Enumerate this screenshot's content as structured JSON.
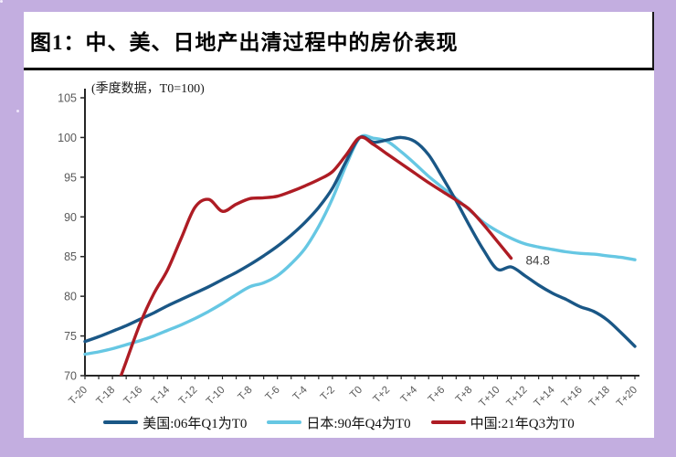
{
  "figure": {
    "title": "图1：中、美、日地产出清过程中的房价表现",
    "subtitle": "(季度数据，T0=100)"
  },
  "chart_data": {
    "type": "line",
    "title": "图1：中、美、日地产出清过程中的房价表现",
    "subtitle": "(季度数据，T0=100)",
    "x_categories": [
      "T-20",
      "T-19",
      "T-18",
      "T-17",
      "T-16",
      "T-15",
      "T-14",
      "T-13",
      "T-12",
      "T-11",
      "T-10",
      "T-9",
      "T-8",
      "T-7",
      "T-6",
      "T-5",
      "T-4",
      "T-3",
      "T-2",
      "T-1",
      "T0",
      "T+1",
      "T+2",
      "T+3",
      "T+4",
      "T+5",
      "T+6",
      "T+7",
      "T+8",
      "T+9",
      "T+10",
      "T+11",
      "T+12",
      "T+13",
      "T+14",
      "T+15",
      "T+16",
      "T+17",
      "T+18",
      "T+19",
      "T+20"
    ],
    "x_tick_label_every": 2,
    "ylim": [
      70,
      105
    ],
    "y_ticks": [
      70,
      75,
      80,
      85,
      90,
      95,
      100,
      105
    ],
    "grid": false,
    "legend_position": "bottom",
    "axis_color": "#262626",
    "tick_label_color": "#595959",
    "series": [
      {
        "name": "日本:90年Q4为T0",
        "legend_order": 2,
        "color": "#66C7E3",
        "values": [
          72.7,
          73.0,
          73.4,
          73.9,
          74.4,
          75.0,
          75.7,
          76.4,
          77.2,
          78.1,
          79.1,
          80.2,
          81.2,
          81.7,
          82.6,
          84.1,
          86.0,
          88.8,
          92.3,
          96.5,
          100.0,
          99.9,
          99.5,
          98.2,
          96.7,
          95.1,
          93.7,
          92.3,
          90.8,
          89.3,
          88.2,
          87.3,
          86.6,
          86.2,
          85.9,
          85.6,
          85.4,
          85.3,
          85.1,
          84.9,
          84.6
        ]
      },
      {
        "name": "美国:06年Q1为T0",
        "legend_order": 1,
        "color": "#1A5786",
        "values": [
          74.3,
          74.9,
          75.6,
          76.3,
          77.1,
          77.9,
          78.8,
          79.6,
          80.4,
          81.2,
          82.1,
          83.0,
          84.0,
          85.1,
          86.3,
          87.7,
          89.3,
          91.2,
          93.6,
          97.0,
          100.0,
          99.4,
          99.7,
          100.0,
          99.5,
          97.8,
          95.0,
          92.0,
          88.8,
          85.8,
          83.4,
          83.7,
          82.6,
          81.4,
          80.4,
          79.6,
          78.7,
          78.1,
          77.0,
          75.4,
          73.7
        ]
      },
      {
        "name": "中国:21年Q3为T0",
        "legend_order": 3,
        "color": "#AE1C24",
        "values": [
          null,
          null,
          67.0,
          71.8,
          76.5,
          80.3,
          83.3,
          87.3,
          91.2,
          92.2,
          90.7,
          91.6,
          92.3,
          92.4,
          92.6,
          93.2,
          93.9,
          94.7,
          95.7,
          97.8,
          100.0,
          99.1,
          97.9,
          96.7,
          95.5,
          94.3,
          93.2,
          92.1,
          90.9,
          89.0,
          86.9,
          84.8,
          null,
          null,
          null,
          null,
          null,
          null,
          null,
          null,
          null
        ]
      }
    ],
    "annotation": {
      "text": "84.8",
      "series": "中国:21年Q3为T0",
      "x": "T+11",
      "value": 84.8,
      "color": "#404040"
    }
  }
}
